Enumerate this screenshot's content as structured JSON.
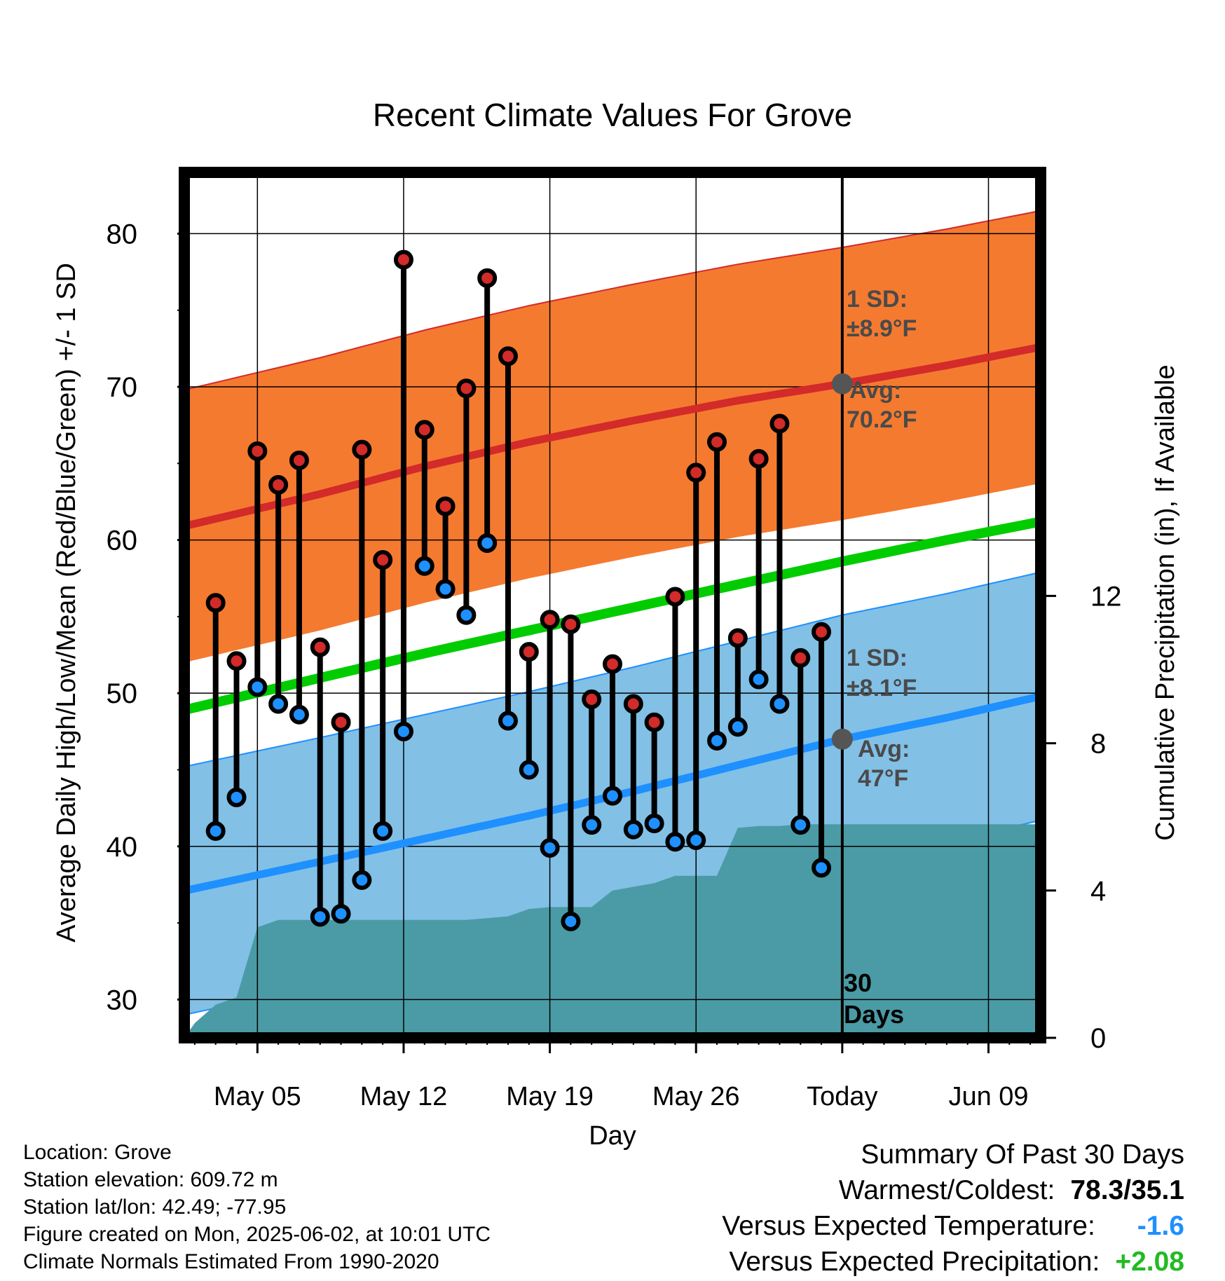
{
  "chart_data": {
    "type": "line",
    "title": "Recent Climate Values For Grove",
    "xlabel": "Day",
    "ylabel": "Average Daily High/Low/Mean (Red/Blue/Green) +/- 1 SD",
    "y2label": "Cumulative Precipitation (in), If Available",
    "x_tick_labels": [
      "May 05",
      "May 12",
      "May 19",
      "May 26",
      "Today",
      "Jun 09"
    ],
    "y_ticks": [
      30,
      40,
      50,
      60,
      70,
      80
    ],
    "y2_ticks": [
      0,
      4,
      8,
      12
    ],
    "ylim": [
      27.5,
      84
    ],
    "y2lim": [
      0,
      23.5
    ],
    "xlim_days": [
      -31.5,
      9.5
    ],
    "grid": true,
    "today_marker": "30 Days",
    "days": [
      -30,
      -29,
      -28,
      -27,
      -26,
      -25,
      -24,
      -23,
      -22,
      -21,
      -20,
      -19,
      -18,
      -17,
      -16,
      -15,
      -14,
      -13,
      -12,
      -11,
      -10,
      -9,
      -8,
      -7,
      -6,
      -5,
      -4,
      -3,
      -2,
      -1
    ],
    "daily_high": [
      55.9,
      52.1,
      65.8,
      63.6,
      65.2,
      53.0,
      48.1,
      65.9,
      58.7,
      78.3,
      67.2,
      62.2,
      69.9,
      77.1,
      72.0,
      52.7,
      54.8,
      54.5,
      49.6,
      51.9,
      49.3,
      48.1,
      56.3,
      64.4,
      66.4,
      53.6,
      65.3,
      67.6,
      52.3,
      54.0
    ],
    "daily_low": [
      41.0,
      43.2,
      50.4,
      49.3,
      48.6,
      35.4,
      35.6,
      37.8,
      41.0,
      47.5,
      58.3,
      56.8,
      55.1,
      59.8,
      48.2,
      45.0,
      39.9,
      35.1,
      41.4,
      43.3,
      41.1,
      41.5,
      40.3,
      40.4,
      46.9,
      47.8,
      50.9,
      49.3,
      41.4,
      38.6
    ],
    "normal_high": {
      "x": [
        -31.5,
        -25,
        -20,
        -15,
        -10,
        -5,
        0,
        5,
        9.5
      ],
      "y": [
        60.9,
        63.0,
        64.8,
        66.4,
        67.8,
        69.1,
        70.2,
        71.4,
        72.6
      ]
    },
    "normal_high_sd": 8.9,
    "normal_mean": {
      "x": [
        -31.5,
        -25,
        -20,
        -15,
        -10,
        -5,
        0,
        5,
        9.5
      ],
      "y": [
        48.9,
        51.0,
        52.6,
        54.1,
        55.6,
        57.1,
        58.6,
        60.0,
        61.2
      ]
    },
    "normal_low": {
      "x": [
        -31.5,
        -25,
        -20,
        -15,
        -10,
        -5,
        0,
        5,
        9.5
      ],
      "y": [
        37.1,
        39.0,
        40.5,
        42.0,
        43.6,
        45.3,
        47.0,
        48.4,
        49.8
      ]
    },
    "normal_low_sd": 8.1,
    "precip_cumulative": {
      "x": [
        -31.5,
        -31,
        -30,
        -29,
        -28,
        -27,
        -26,
        -25,
        -23,
        -21,
        -19,
        -18,
        -17,
        -16,
        -15,
        -14,
        -13,
        -12,
        -11,
        -10,
        -9,
        -8,
        -7,
        -6,
        -5,
        -4,
        -3,
        -2,
        -1,
        0,
        9.5
      ],
      "y": [
        0,
        0.4,
        0.9,
        1.1,
        3.0,
        3.2,
        3.2,
        3.2,
        3.2,
        3.2,
        3.2,
        3.2,
        3.25,
        3.3,
        3.5,
        3.55,
        3.55,
        3.55,
        4.0,
        4.1,
        4.2,
        4.4,
        4.4,
        4.4,
        5.7,
        5.75,
        5.75,
        5.8,
        5.8,
        5.8,
        5.8
      ]
    },
    "annotations": {
      "high_sd_label": "1 SD:",
      "high_sd_value": "±8.9°F",
      "high_avg_label": "Avg:",
      "high_avg_value": "70.2°F",
      "low_sd_label": "1 SD:",
      "low_sd_value": "±8.1°F",
      "low_avg_label": "Avg:",
      "low_avg_value": "47°F"
    },
    "colors": {
      "high_band": "#f47a30",
      "high_line": "#d32a2a",
      "mean_line": "#00cc00",
      "low_band": "#82c0e6",
      "low_line": "#1e90ff",
      "precip_fill": "#4a9ba5",
      "high_dot": "#d32a2a",
      "low_dot": "#1e90ff",
      "annotation_text": "#4a4a4a"
    }
  },
  "info": {
    "location": "Location: Grove",
    "elevation": "Station elevation: 609.72 m",
    "latlon": "Station lat/lon: 42.49; -77.95",
    "created": "Figure created on Mon, 2025-06-02, at 10:01 UTC",
    "normals": "Climate Normals Estimated From 1990-2020"
  },
  "summary": {
    "title": "Summary Of Past 30 Days",
    "warmest_coldest_label": "Warmest/Coldest:",
    "warmest_coldest_value": "78.3/35.1",
    "temp_label": "Versus Expected Temperature:",
    "temp_value": "-1.6",
    "temp_color": "#1e90ff",
    "precip_label": "Versus Expected Precipitation:",
    "precip_value": "+2.08",
    "precip_color": "#22bb22"
  }
}
